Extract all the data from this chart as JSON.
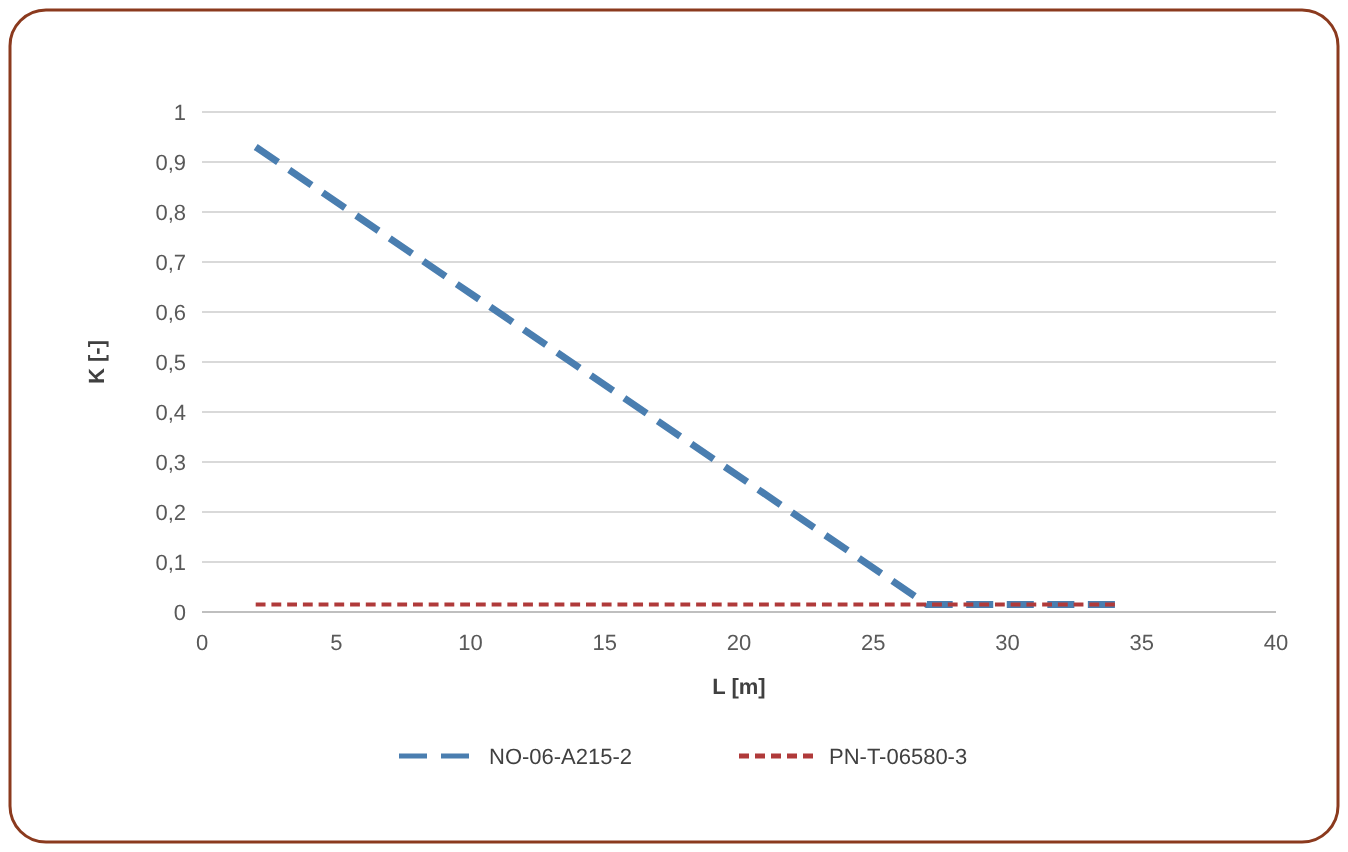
{
  "chart_data": {
    "type": "line",
    "xlabel": "L [m]",
    "ylabel": "K [-]",
    "xlim": [
      0,
      40
    ],
    "xticks": [
      0,
      5,
      10,
      15,
      20,
      25,
      30,
      35,
      40
    ],
    "ylim": [
      0,
      1
    ],
    "yticks": [
      0,
      {
        "value": 0.1,
        "label": "0,1"
      },
      {
        "value": 0.2,
        "label": "0,2"
      },
      {
        "value": 0.3,
        "label": "0,3"
      },
      {
        "value": 0.4,
        "label": "0,4"
      },
      {
        "value": 0.5,
        "label": "0,5"
      },
      {
        "value": 0.6,
        "label": "0,6"
      },
      {
        "value": 0.7,
        "label": "0,7"
      },
      {
        "value": 0.8,
        "label": "0,8"
      },
      {
        "value": 0.9,
        "label": "0,9"
      },
      1
    ],
    "grid": "y",
    "legend": "bottom",
    "marker": "none",
    "series": [
      {
        "name": "NO-06-A215-2",
        "color": "#4a7eb0",
        "line_style": "dashed",
        "x": [
          2,
          27,
          34
        ],
        "values": [
          0.93,
          0.015,
          0.015
        ]
      },
      {
        "name": "PN-T-06580-3",
        "color": "#b03a3a",
        "line_style": "dotted",
        "x": [
          2,
          34
        ],
        "values": [
          0.015,
          0.015
        ]
      }
    ]
  }
}
